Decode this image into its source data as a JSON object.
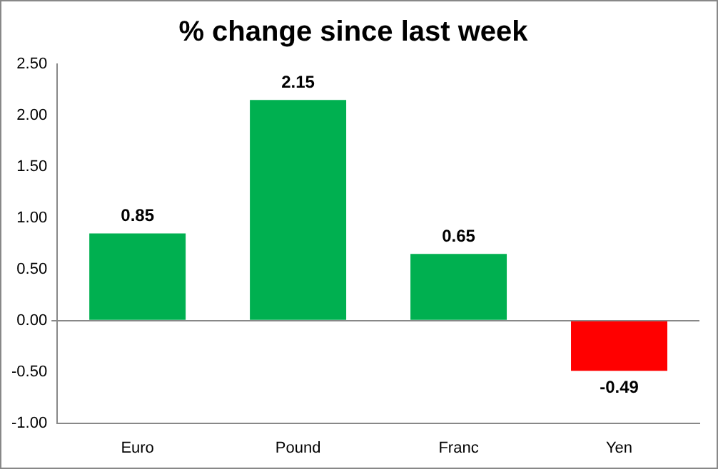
{
  "chart_data": {
    "type": "bar",
    "title": "% change since last week",
    "categories": [
      "Euro",
      "Pound",
      "Franc",
      "Yen"
    ],
    "values": [
      0.85,
      2.15,
      0.65,
      -0.49
    ],
    "colors": [
      "#00b050",
      "#00b050",
      "#00b050",
      "#ff0000"
    ],
    "ylim": [
      -1,
      2.5
    ],
    "yticks": [
      {
        "value": -1,
        "label": "-1.00"
      },
      {
        "value": -0.5,
        "label": "-0.50"
      },
      {
        "value": 0,
        "label": "0.00"
      },
      {
        "value": 0.5,
        "label": "0.50"
      },
      {
        "value": 1,
        "label": "1.00"
      },
      {
        "value": 1.5,
        "label": "1.50"
      },
      {
        "value": 2,
        "label": "2.00"
      },
      {
        "value": 2.5,
        "label": "2.50"
      }
    ],
    "data_labels": true
  }
}
